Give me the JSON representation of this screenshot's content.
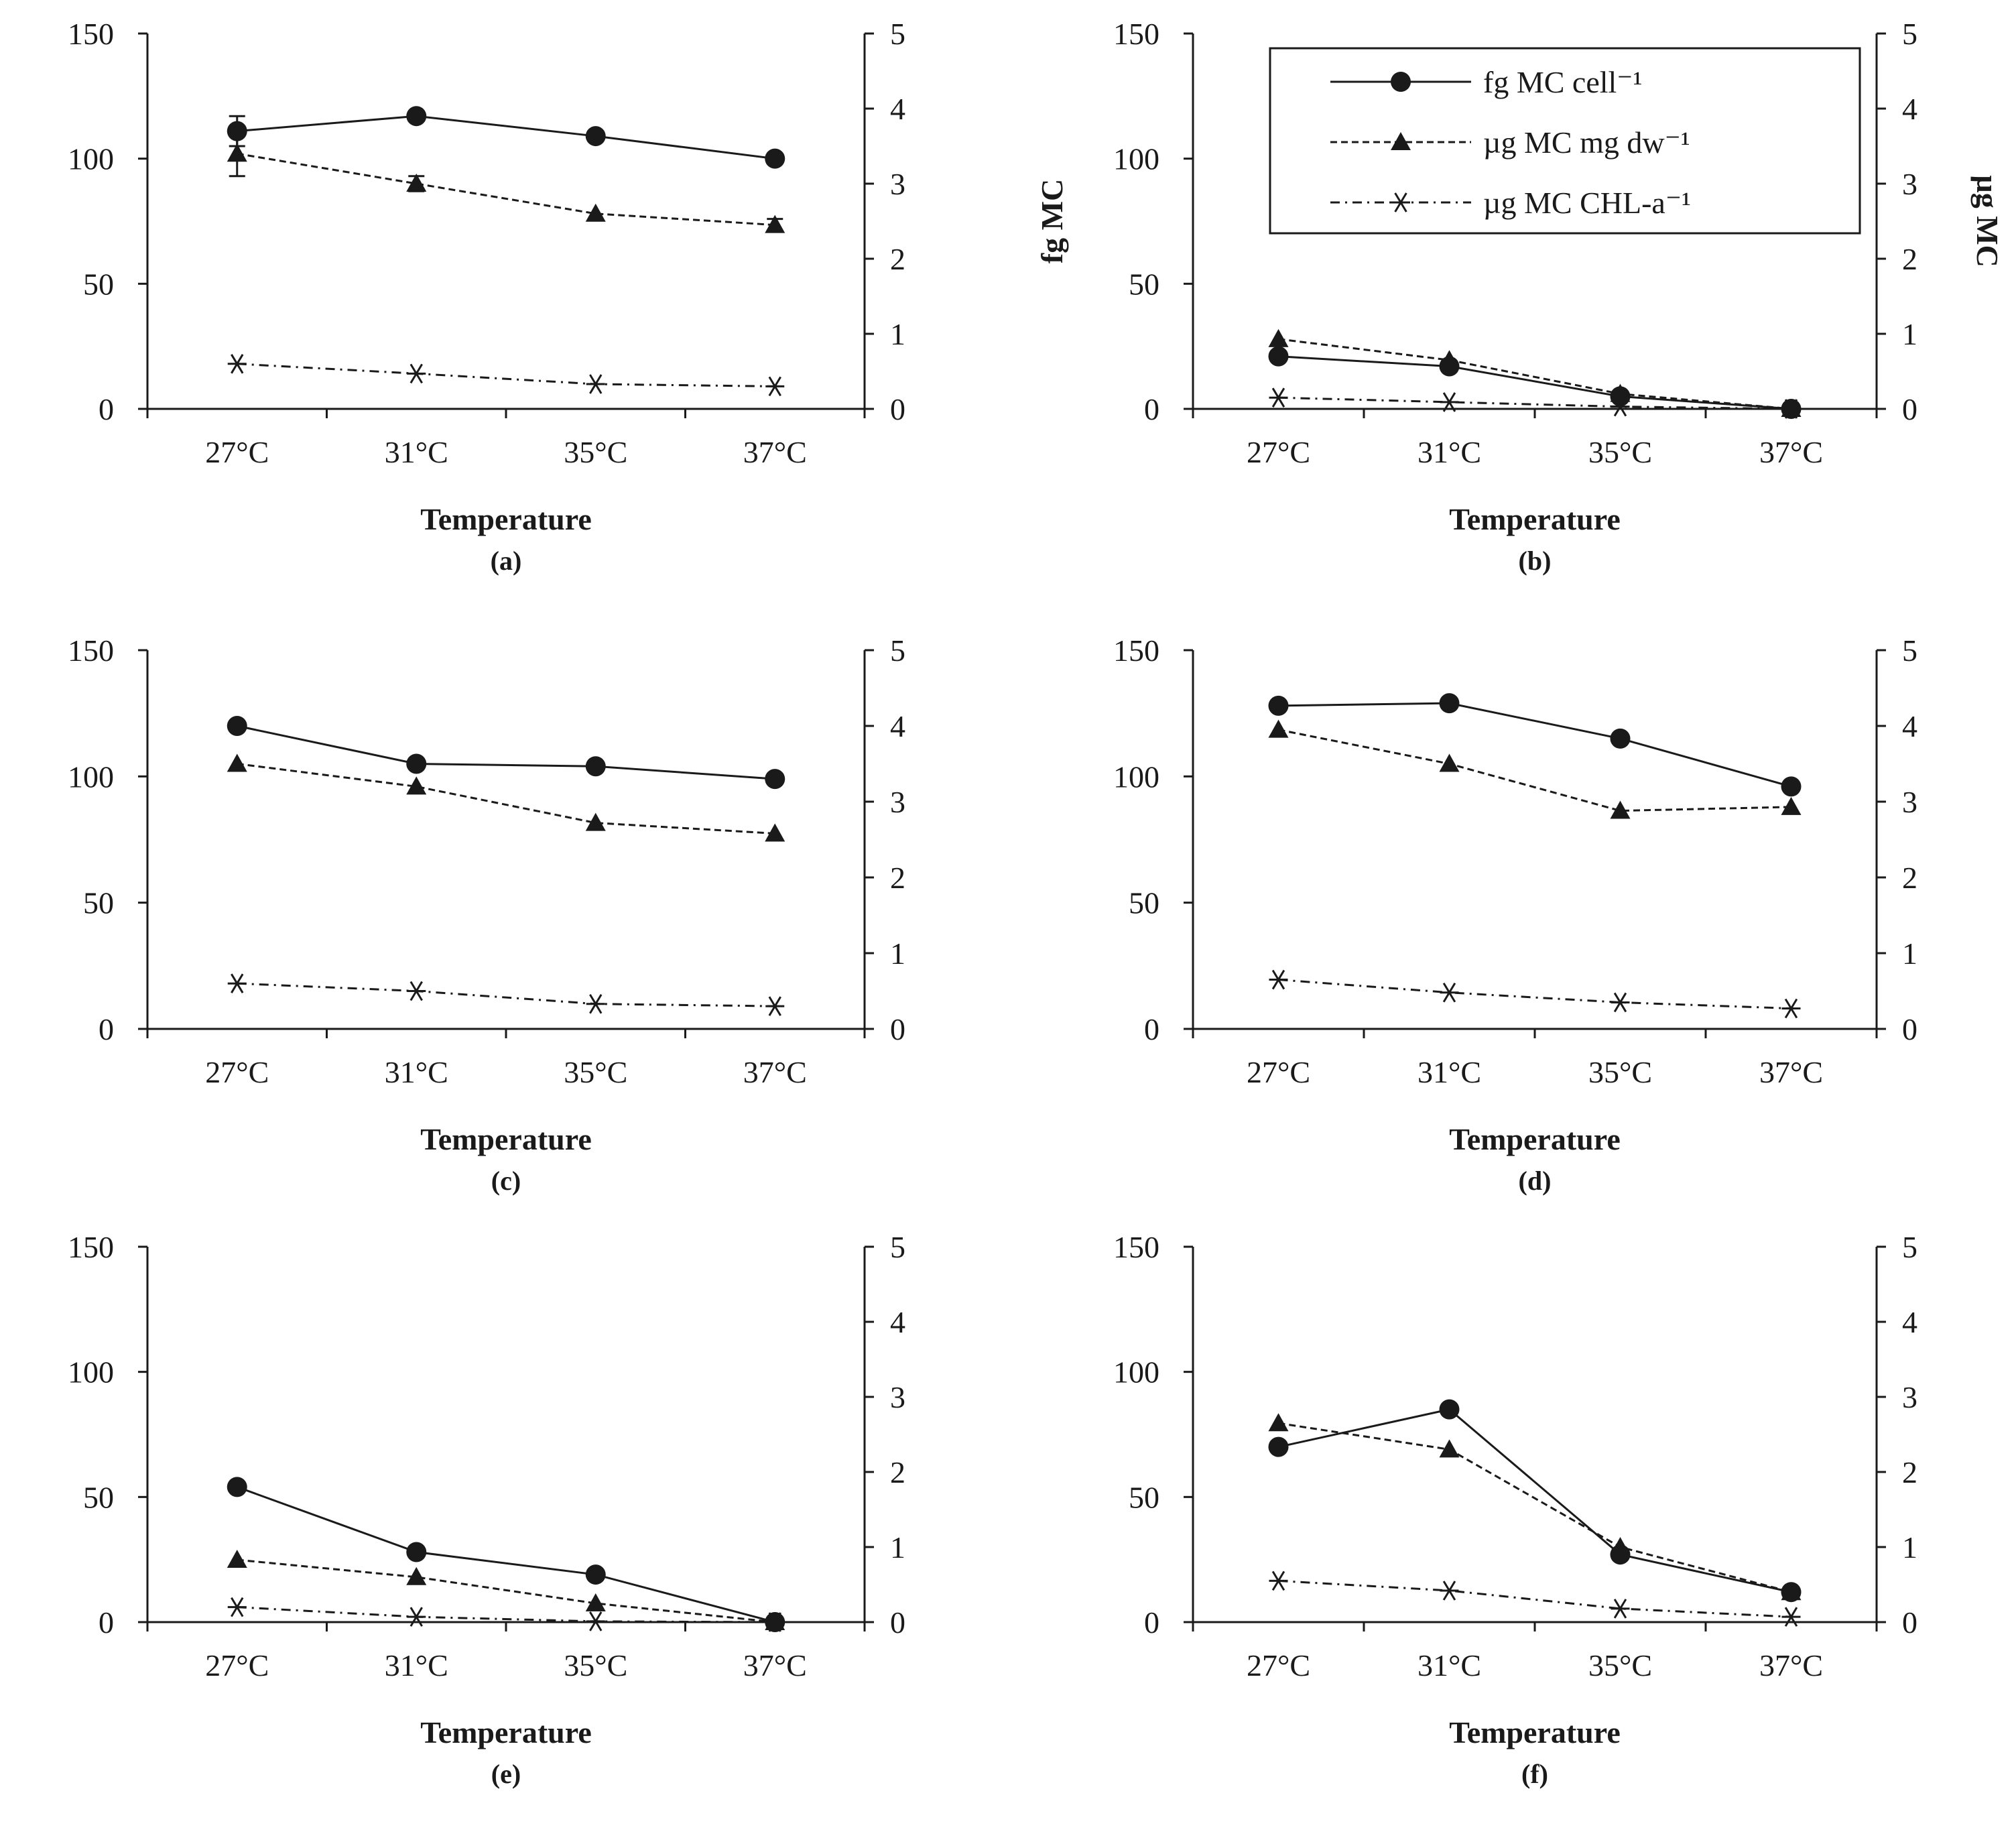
{
  "chart_data": [
    {
      "type": "line",
      "panel": "(a)",
      "xlabel": "Temperature",
      "categories": [
        "27°C",
        "31°C",
        "35°C",
        "37°C"
      ],
      "ylim_left": [
        0,
        150
      ],
      "yticks_left": [
        0,
        50,
        100,
        150
      ],
      "ylim_right": [
        0,
        5
      ],
      "yticks_right": [
        0,
        1,
        2,
        3,
        4,
        5
      ],
      "series": [
        {
          "name": "fg MC cell⁻¹",
          "axis": "left",
          "values": [
            111,
            117,
            109,
            100
          ],
          "errors": [
            6,
            0,
            0,
            0
          ]
        },
        {
          "name": "µg MC mg dw⁻¹",
          "axis": "right",
          "values": [
            3.4,
            3.0,
            2.6,
            2.45
          ],
          "errors": [
            0.3,
            0.1,
            0,
            0.08
          ]
        },
        {
          "name": "µg MC CHL-a⁻¹",
          "axis": "right",
          "values": [
            0.6,
            0.47,
            0.33,
            0.3
          ]
        }
      ]
    },
    {
      "type": "line",
      "panel": "(b)",
      "xlabel": "Temperature",
      "ylabel_left": "fg MC",
      "ylabel_right": "µg MC",
      "categories": [
        "27°C",
        "31°C",
        "35°C",
        "37°C"
      ],
      "ylim_left": [
        0,
        150
      ],
      "yticks_left": [
        0,
        50,
        100,
        150
      ],
      "ylim_right": [
        0,
        5
      ],
      "yticks_right": [
        0,
        1,
        2,
        3,
        4,
        5
      ],
      "series": [
        {
          "name": "fg MC cell⁻¹",
          "axis": "left",
          "values": [
            21,
            17,
            5,
            0
          ]
        },
        {
          "name": "µg MC mg dw⁻¹",
          "axis": "right",
          "values": [
            0.93,
            0.65,
            0.2,
            0
          ]
        },
        {
          "name": "µg MC CHL-a⁻¹",
          "axis": "right",
          "values": [
            0.15,
            0.09,
            0.03,
            0
          ]
        }
      ]
    },
    {
      "type": "line",
      "panel": "(c)",
      "xlabel": "Temperature",
      "categories": [
        "27°C",
        "31°C",
        "35°C",
        "37°C"
      ],
      "ylim_left": [
        0,
        150
      ],
      "yticks_left": [
        0,
        50,
        100,
        150
      ],
      "ylim_right": [
        0,
        5
      ],
      "yticks_right": [
        0,
        1,
        2,
        3,
        4,
        5
      ],
      "series": [
        {
          "name": "fg MC cell⁻¹",
          "axis": "left",
          "values": [
            120,
            105,
            104,
            99
          ]
        },
        {
          "name": "µg MC mg dw⁻¹",
          "axis": "right",
          "values": [
            3.5,
            3.2,
            2.72,
            2.58
          ]
        },
        {
          "name": "µg MC CHL-a⁻¹",
          "axis": "right",
          "values": [
            0.6,
            0.5,
            0.33,
            0.3
          ]
        }
      ]
    },
    {
      "type": "line",
      "panel": "(d)",
      "xlabel": "Temperature",
      "categories": [
        "27°C",
        "31°C",
        "35°C",
        "37°C"
      ],
      "ylim_left": [
        0,
        150
      ],
      "yticks_left": [
        0,
        50,
        100,
        150
      ],
      "ylim_right": [
        0,
        5
      ],
      "yticks_right": [
        0,
        1,
        2,
        3,
        4,
        5
      ],
      "series": [
        {
          "name": "fg MC cell⁻¹",
          "axis": "left",
          "values": [
            128,
            129,
            115,
            96
          ]
        },
        {
          "name": "µg MC mg dw⁻¹",
          "axis": "right",
          "values": [
            3.95,
            3.5,
            2.88,
            2.93
          ]
        },
        {
          "name": "µg MC CHL-a⁻¹",
          "axis": "right",
          "values": [
            0.65,
            0.48,
            0.35,
            0.27
          ]
        }
      ]
    },
    {
      "type": "line",
      "panel": "(e)",
      "xlabel": "Temperature",
      "categories": [
        "27°C",
        "31°C",
        "35°C",
        "37°C"
      ],
      "ylim_left": [
        0,
        150
      ],
      "yticks_left": [
        0,
        50,
        100,
        150
      ],
      "ylim_right": [
        0,
        5
      ],
      "yticks_right": [
        0,
        1,
        2,
        3,
        4,
        5
      ],
      "series": [
        {
          "name": "fg MC cell⁻¹",
          "axis": "left",
          "values": [
            54,
            28,
            19,
            0
          ]
        },
        {
          "name": "µg MC mg dw⁻¹",
          "axis": "right",
          "values": [
            0.83,
            0.6,
            0.25,
            0
          ]
        },
        {
          "name": "µg MC CHL-a⁻¹",
          "axis": "right",
          "values": [
            0.2,
            0.07,
            0.01,
            0
          ]
        }
      ]
    },
    {
      "type": "line",
      "panel": "(f)",
      "xlabel": "Temperature",
      "categories": [
        "27°C",
        "31°C",
        "35°C",
        "37°C"
      ],
      "ylim_left": [
        0,
        150
      ],
      "yticks_left": [
        0,
        50,
        100,
        150
      ],
      "ylim_right": [
        0,
        5
      ],
      "yticks_right": [
        0,
        1,
        2,
        3,
        4,
        5
      ],
      "series": [
        {
          "name": "fg MC cell⁻¹",
          "axis": "left",
          "values": [
            70,
            85,
            27,
            12
          ]
        },
        {
          "name": "µg MC mg dw⁻¹",
          "axis": "right",
          "values": [
            2.65,
            2.3,
            1.0,
            0.4
          ]
        },
        {
          "name": "µg MC CHL-a⁻¹",
          "axis": "right",
          "values": [
            0.55,
            0.42,
            0.18,
            0.07
          ]
        }
      ]
    }
  ],
  "legend": {
    "entries": [
      "fg MC cell⁻¹",
      "µg MC mg dw⁻¹",
      "µg MC CHL-a⁻¹"
    ],
    "position": "top-right of panel (b)"
  },
  "colors": {
    "line": "#1a1a1a",
    "background": "#ffffff"
  }
}
